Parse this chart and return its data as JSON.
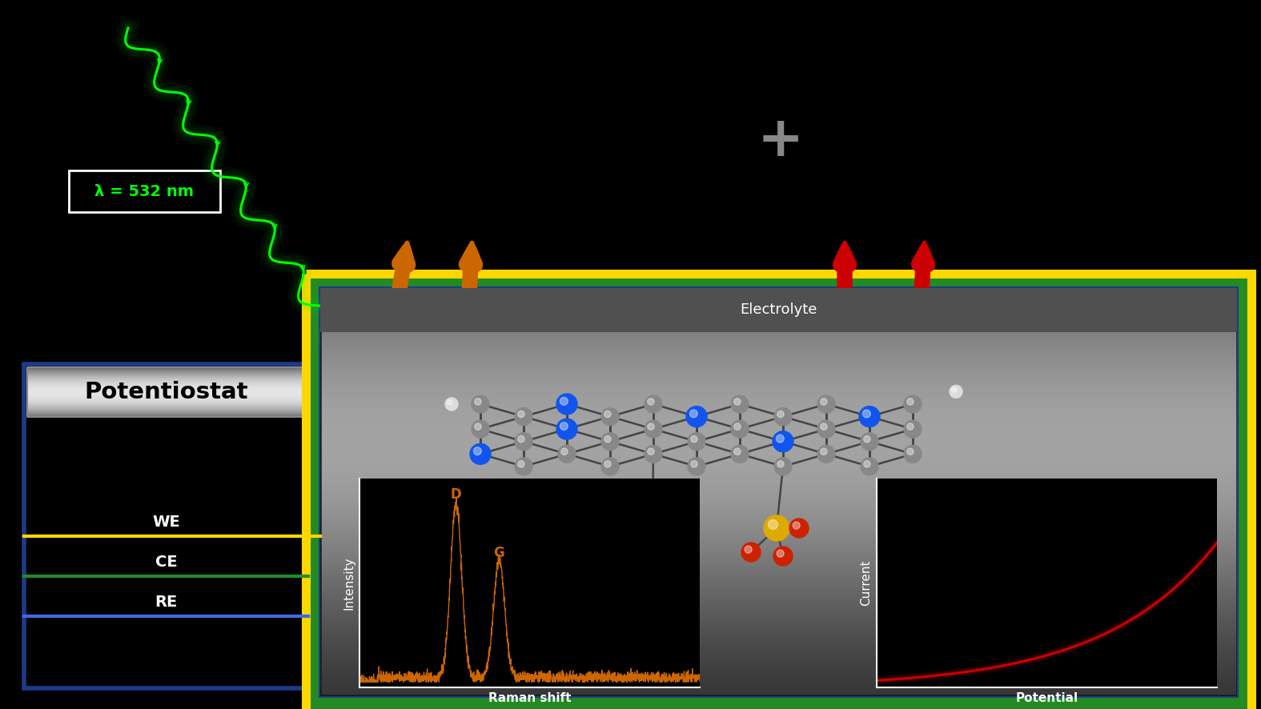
{
  "bg_color": "#000000",
  "raman_color": "#CC6600",
  "iv_color": "#CC0000",
  "green_color": "#00FF00",
  "orange_arrow_color": "#CC6600",
  "lambda_text": "λ = 532 nm",
  "lambda_color": "#00FF00",
  "raman_xlabel": "Raman shift",
  "raman_ylabel": "Intensity",
  "iv_xlabel": "Potential",
  "iv_ylabel": "Current",
  "plus_color": "#888888",
  "potentiostat_text": "Potentiostat",
  "electrolyte_text": "Electrolyte",
  "we_text": "WE",
  "ce_text": "CE",
  "re_text": "RE",
  "we_color": "#FFD700",
  "ce_color": "#228B22",
  "re_color": "#1E3A8A",
  "atom_colors": {
    "C": "#888888",
    "N": "#1155EE",
    "S": "#DDAA00",
    "O": "#CC2200",
    "H": "#dddddd"
  }
}
